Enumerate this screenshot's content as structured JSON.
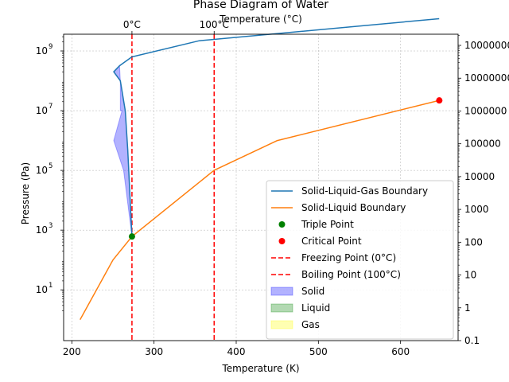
{
  "chart_data": {
    "type": "line",
    "title": "Phase Diagram of Water",
    "xlabel": "Temperature (K)",
    "ylabel": "Pressure (Pa)",
    "top_xlabel": "Temperature (°C)",
    "xlim": [
      190,
      670
    ],
    "ylim_log10": [
      -0.7,
      9.56
    ],
    "yscale": "log",
    "grid": true,
    "legend_position": "lower right",
    "xticks": [
      200,
      300,
      400,
      500,
      600
    ],
    "yticks": [
      {
        "exp": 1,
        "label": "10",
        "sup": "1"
      },
      {
        "exp": 3,
        "label": "10",
        "sup": "3"
      },
      {
        "exp": 5,
        "label": "10",
        "sup": "5"
      },
      {
        "exp": 7,
        "label": "10",
        "sup": "7"
      },
      {
        "exp": 9,
        "label": "10",
        "sup": "9"
      }
    ],
    "top_xticks": [
      {
        "x": 273.15,
        "label": "0°C"
      },
      {
        "x": 373.15,
        "label": "100°C"
      }
    ],
    "right_yticks": [
      {
        "exp": -1,
        "label": "0.1"
      },
      {
        "exp": 0,
        "label": "1"
      },
      {
        "exp": 1,
        "label": "10"
      },
      {
        "exp": 2,
        "label": "100"
      },
      {
        "exp": 3,
        "label": "1000"
      },
      {
        "exp": 4,
        "label": "10000"
      },
      {
        "exp": 5,
        "label": "100000"
      },
      {
        "exp": 6,
        "label": "1000000"
      },
      {
        "exp": 7,
        "label": "10000000"
      },
      {
        "exp": 8,
        "label": "100000000"
      }
    ],
    "series": [
      {
        "name": "Solid-Liquid-Gas Boundary",
        "color": "#1f77b4",
        "x": [
          273.16,
          268,
          265,
          259,
          251,
          258,
          273,
          355,
          647
        ],
        "y": [
          611.657,
          500000.0,
          10000000.0,
          100000000.0,
          200000000.0,
          320000000.0,
          630000000.0,
          2200000000.0,
          12000000000.0
        ]
      },
      {
        "name": "Solid-Liquid Boundary",
        "color": "#ff7f0e",
        "x": [
          210,
          250,
          273.16,
          373,
          450,
          647
        ],
        "y": [
          1,
          100,
          611.657,
          100000.0,
          1000000.0,
          22000000.0
        ]
      }
    ],
    "points": [
      {
        "name": "Triple Point",
        "color": "#008000",
        "x": 273.16,
        "y": 611.657
      },
      {
        "name": "Critical Point",
        "color": "#ff0000",
        "x": 647.1,
        "y": 22064000.0
      }
    ],
    "vlines": [
      {
        "name": "Freezing Point (0°C)",
        "color": "#ff0000",
        "x": 273.15
      },
      {
        "name": "Boiling Point (100°C)",
        "color": "#ff0000",
        "x": 373.15
      }
    ],
    "regions": [
      {
        "name": "Solid",
        "color": "#0000ff",
        "alpha": 0.3,
        "x": [
          273.16,
          268,
          265,
          259,
          251,
          258,
          259,
          259,
          261,
          251,
          263,
          273.16
        ],
        "y": [
          611.657,
          500000.0,
          10000000.0,
          100000000.0,
          200000000.0,
          320000000.0,
          100000000.0,
          10000000.0,
          10000000.0,
          1000000.0,
          100000.0,
          611.657
        ]
      },
      {
        "name": "Liquid",
        "color": "#008000",
        "alpha": 0.3
      },
      {
        "name": "Gas",
        "color": "#ffff00",
        "alpha": 0.3
      }
    ]
  }
}
